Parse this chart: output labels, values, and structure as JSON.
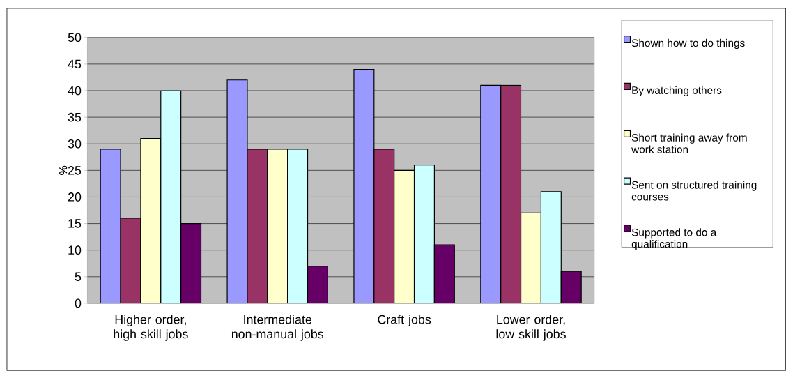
{
  "chart_data": {
    "type": "bar",
    "ylabel": "%",
    "categories": [
      "Higher order, high skill jobs",
      "Intermediate non-manual jobs",
      "Craft jobs",
      "Lower order, low skill jobs"
    ],
    "series": [
      {
        "name": "Shown how to do things",
        "color": "#9999ff",
        "values": [
          29,
          42,
          44,
          41
        ]
      },
      {
        "name": "By watching others",
        "color": "#993366",
        "values": [
          16,
          29,
          29,
          41
        ]
      },
      {
        "name": "Short training away from work station",
        "color": "#ffffcc",
        "values": [
          31,
          29,
          25,
          17
        ]
      },
      {
        "name": "Sent on structured training courses",
        "color": "#ccffff",
        "values": [
          40,
          29,
          26,
          21
        ]
      },
      {
        "name": "Supported to do a qualification",
        "color": "#660066",
        "values": [
          15,
          7,
          11,
          6
        ]
      }
    ],
    "ylim": [
      0,
      50
    ],
    "yticks": [
      0,
      5,
      10,
      15,
      20,
      25,
      30,
      35,
      40,
      45,
      50
    ],
    "grid": "y",
    "legend": "right"
  }
}
